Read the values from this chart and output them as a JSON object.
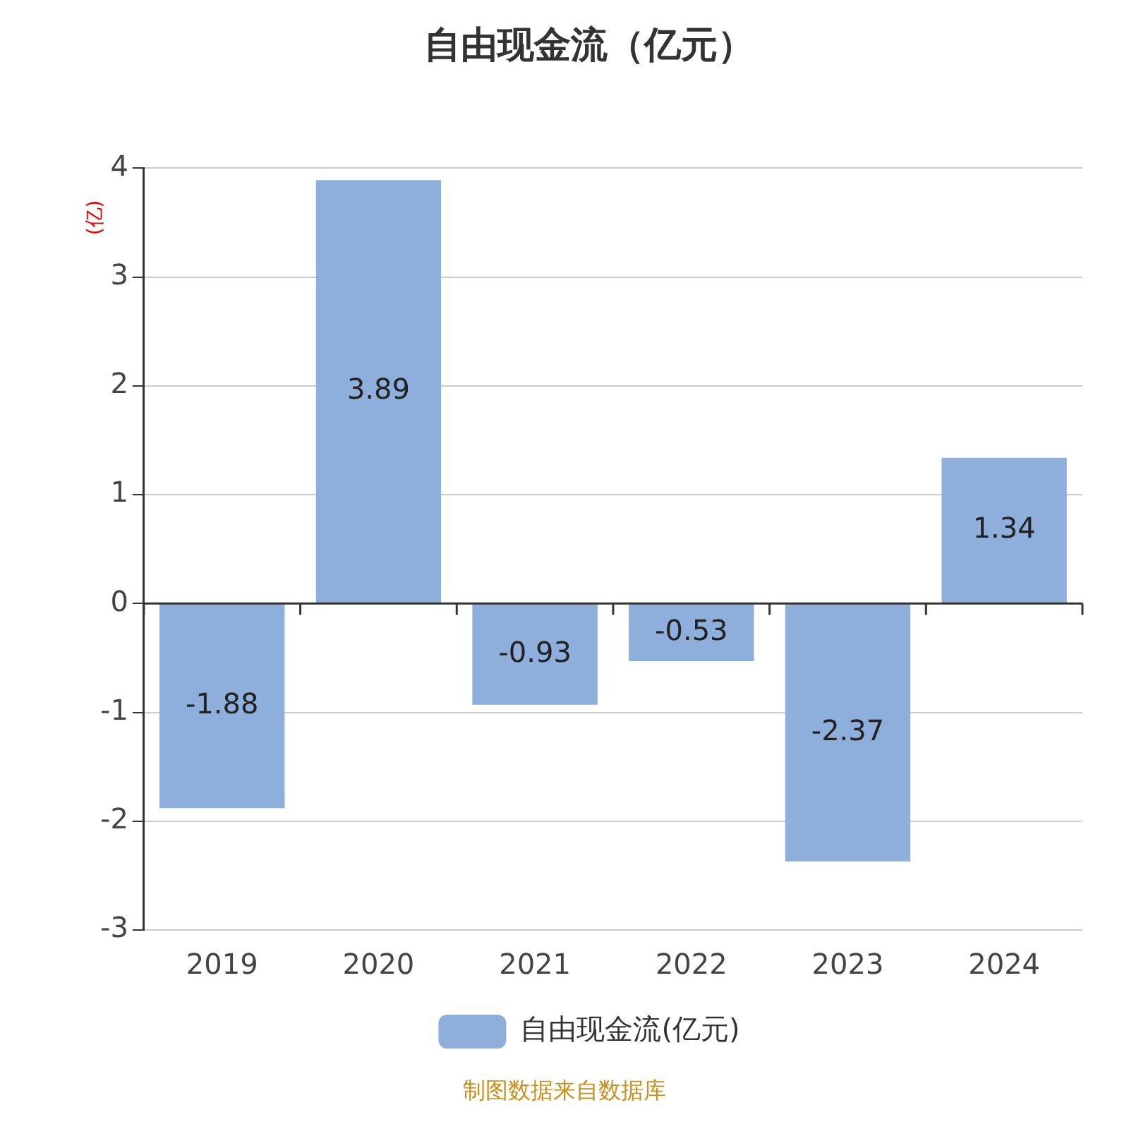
{
  "chart_data": {
    "type": "bar",
    "title": "自由现金流（亿元）",
    "ylabel": "(亿)",
    "categories": [
      "2019",
      "2020",
      "2021",
      "2022",
      "2023",
      "2024"
    ],
    "series": [
      {
        "name": "自由现金流(亿元)",
        "color": "#8eaedb",
        "values": [
          -1.88,
          3.89,
          -0.93,
          -0.53,
          -2.37,
          1.34
        ]
      }
    ],
    "ylim": [
      -3,
      4
    ],
    "yticks": [
      -3,
      -2,
      -1,
      0,
      1,
      2,
      3,
      4
    ],
    "grid": "y",
    "legend": "bottom",
    "data_labels": true,
    "annotations": [
      "制图数据来自数据库"
    ]
  }
}
